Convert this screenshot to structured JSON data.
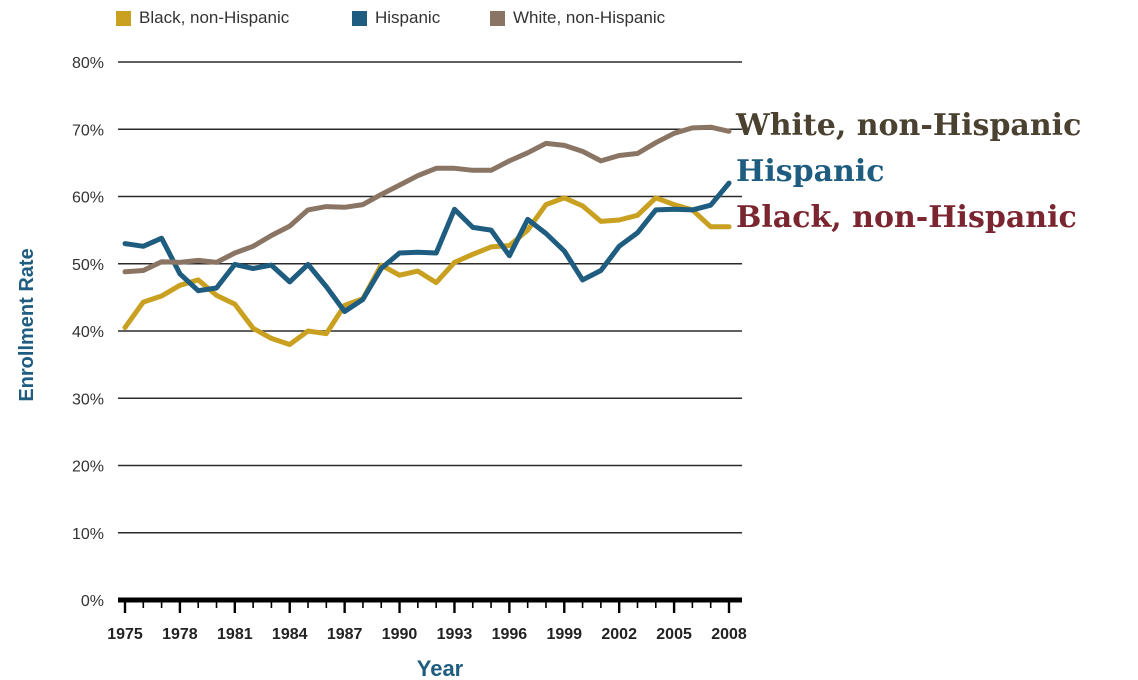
{
  "legend": [
    {
      "label": "Black, non-Hispanic",
      "color": "#C9A020"
    },
    {
      "label": "Hispanic",
      "color": "#1E5C80"
    },
    {
      "label": "White, non-Hispanic",
      "color": "#8A7565"
    }
  ],
  "end_labels": {
    "white": {
      "text": "White, non-Hispanic",
      "color": "#4A4130"
    },
    "hispanic": {
      "text": "Hispanic",
      "color": "#1E5C80"
    },
    "black": {
      "text": "Black, non-Hispanic",
      "color": "#7A2530"
    }
  },
  "chart_data": {
    "type": "line",
    "xlabel": "Year",
    "ylabel": "Enrollment Rate",
    "ylim": [
      0,
      80
    ],
    "yticks": [
      0,
      10,
      20,
      30,
      40,
      50,
      60,
      70,
      80
    ],
    "ytick_labels": [
      "0%",
      "10%",
      "20%",
      "30%",
      "40%",
      "50%",
      "60%",
      "70%",
      "80%"
    ],
    "xlim": [
      1975,
      2008
    ],
    "xticks": [
      1975,
      1978,
      1981,
      1984,
      1987,
      1990,
      1993,
      1996,
      1999,
      2002,
      2005,
      2008
    ],
    "xtick_labels": [
      "1975",
      "1978",
      "1981",
      "1984",
      "1987",
      "1990",
      "1993",
      "1996",
      "1999",
      "2002",
      "2005",
      "2008"
    ],
    "grid": true,
    "x": [
      1975,
      1976,
      1977,
      1978,
      1979,
      1980,
      1981,
      1982,
      1983,
      1984,
      1985,
      1986,
      1987,
      1988,
      1989,
      1990,
      1991,
      1992,
      1993,
      1994,
      1995,
      1996,
      1997,
      1998,
      1999,
      2000,
      2001,
      2002,
      2003,
      2004,
      2005,
      2006,
      2007,
      2008
    ],
    "series": [
      {
        "name": "Black, non-Hispanic",
        "color": "#C9A020",
        "values": [
          40.5,
          44.3,
          45.2,
          46.8,
          47.6,
          45.3,
          44.0,
          40.4,
          38.9,
          38.0,
          40.0,
          39.6,
          43.8,
          44.8,
          49.8,
          48.3,
          48.9,
          47.2,
          50.2,
          51.4,
          52.5,
          52.7,
          55.0,
          58.8,
          59.8,
          58.6,
          56.3,
          56.5,
          57.2,
          59.8,
          58.8,
          58.0,
          55.5,
          55.5
        ]
      },
      {
        "name": "Hispanic",
        "color": "#1E5C80",
        "values": [
          53.0,
          52.6,
          53.8,
          48.5,
          46.0,
          46.4,
          49.9,
          49.3,
          49.8,
          47.3,
          49.9,
          46.6,
          42.9,
          44.7,
          49.3,
          51.6,
          51.7,
          51.6,
          58.1,
          55.4,
          55.0,
          51.2,
          56.6,
          54.5,
          51.9,
          47.6,
          49.0,
          52.6,
          54.6,
          58.0,
          58.1,
          58.0,
          58.7,
          62.0
        ]
      },
      {
        "name": "White, non-Hispanic",
        "color": "#8A7565",
        "values": [
          48.8,
          49.0,
          50.3,
          50.2,
          50.5,
          50.2,
          51.6,
          52.6,
          54.2,
          55.6,
          58.0,
          58.5,
          58.4,
          58.8,
          60.3,
          61.7,
          63.1,
          64.2,
          64.2,
          63.9,
          63.9,
          65.3,
          66.5,
          67.9,
          67.6,
          66.7,
          65.3,
          66.1,
          66.4,
          68.0,
          69.4,
          70.2,
          70.3,
          69.7
        ]
      }
    ]
  }
}
